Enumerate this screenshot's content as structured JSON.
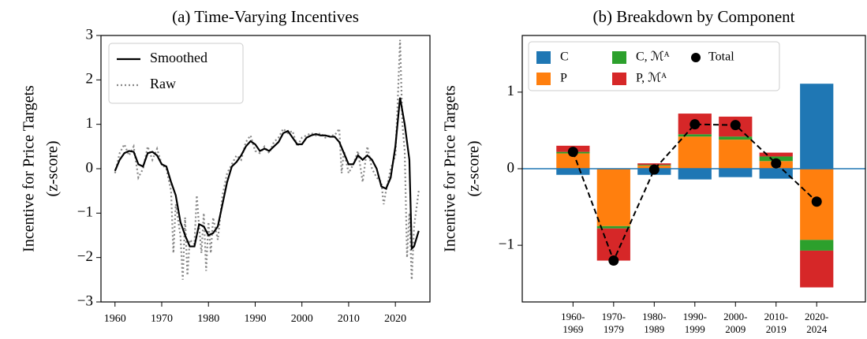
{
  "chart_data": [
    {
      "type": "line",
      "title": "(a) Time-Varying Incentives",
      "ylabel": [
        "Incentive for Price Targets",
        "(z-score)"
      ],
      "xlim": [
        1957,
        2027.4
      ],
      "ylim": [
        -3,
        3
      ],
      "xticks": [
        1960,
        1970,
        1980,
        1990,
        2000,
        2010,
        2020
      ],
      "yticks": [
        {
          "value": -3,
          "label": "−3"
        },
        {
          "value": -2,
          "label": "−2"
        },
        {
          "value": -1,
          "label": "−1"
        },
        0,
        1,
        2,
        3
      ],
      "legend": "upper left",
      "series": [
        {
          "name": "Smoothed",
          "color": "#000000",
          "style": "solid",
          "x": [
            1960,
            1961,
            1962,
            1963,
            1964,
            1965,
            1966,
            1967,
            1968,
            1969,
            1970,
            1971,
            1972,
            1973,
            1974,
            1975,
            1976,
            1977,
            1978,
            1979,
            1980,
            1981,
            1982,
            1983,
            1984,
            1985,
            1986,
            1987,
            1988,
            1989,
            1990,
            1991,
            1992,
            1993,
            1994,
            1995,
            1996,
            1997,
            1998,
            1999,
            2000,
            2001,
            2002,
            2003,
            2004,
            2005,
            2006,
            2007,
            2008,
            2009,
            2010,
            2011,
            2012,
            2013,
            2014,
            2015,
            2016,
            2017,
            2018,
            2019,
            2020,
            2021,
            2022,
            2023,
            2023.5,
            2024,
            2025
          ],
          "values": [
            -0.05,
            0.2,
            0.35,
            0.4,
            0.38,
            0.1,
            0.05,
            0.35,
            0.38,
            0.3,
            0.1,
            0.05,
            -0.3,
            -0.6,
            -1.2,
            -1.5,
            -1.75,
            -1.75,
            -1.25,
            -1.3,
            -1.5,
            -1.45,
            -1.3,
            -0.8,
            -0.3,
            0.05,
            0.15,
            0.3,
            0.5,
            0.62,
            0.55,
            0.4,
            0.45,
            0.4,
            0.5,
            0.6,
            0.8,
            0.85,
            0.7,
            0.55,
            0.55,
            0.7,
            0.75,
            0.78,
            0.75,
            0.75,
            0.72,
            0.72,
            0.6,
            0.35,
            0.1,
            0.1,
            0.3,
            0.2,
            0.3,
            0.2,
            0.0,
            -0.4,
            -0.45,
            -0.2,
            0.5,
            1.6,
            1.0,
            0.2,
            -1.8,
            -1.75,
            -1.4
          ]
        },
        {
          "name": "Raw",
          "color": "#888888",
          "style": "dotted",
          "x": [
            1960,
            1961,
            1962,
            1963,
            1964,
            1965,
            1966,
            1967,
            1968,
            1969,
            1970,
            1971,
            1972,
            1972.5,
            1973,
            1974,
            1974.5,
            1975,
            1975.5,
            1976,
            1977,
            1977.5,
            1978,
            1978.5,
            1979,
            1979.5,
            1980,
            1980.5,
            1981,
            1982,
            1983,
            1984,
            1985,
            1986,
            1987,
            1988,
            1989,
            1990,
            1991,
            1992,
            1993,
            1994,
            1995,
            1996,
            1997,
            1998,
            1999,
            2000,
            2001,
            2002,
            2003,
            2004,
            2005,
            2006,
            2007,
            2008,
            2008.5,
            2009,
            2010,
            2011,
            2012,
            2013,
            2014,
            2015,
            2016,
            2017,
            2017.5,
            2018,
            2019,
            2020,
            2020.5,
            2021,
            2021.5,
            2022,
            2022.5,
            2023,
            2023.5,
            2024,
            2025
          ],
          "values": [
            -0.1,
            0.35,
            0.55,
            0.3,
            0.5,
            -0.2,
            0.0,
            0.5,
            0.2,
            0.45,
            0.1,
            0.0,
            -0.5,
            -1.9,
            -0.8,
            -1.5,
            -2.5,
            -1.1,
            -2.4,
            -1.6,
            -1.7,
            -0.6,
            -1.3,
            -1.9,
            -1.0,
            -2.3,
            -1.2,
            -1.9,
            -1.1,
            -1.6,
            -0.6,
            -0.1,
            0.1,
            0.3,
            0.2,
            0.6,
            0.75,
            0.4,
            0.35,
            0.5,
            0.35,
            0.6,
            0.7,
            0.9,
            0.8,
            0.85,
            0.5,
            0.7,
            0.75,
            0.8,
            0.75,
            0.8,
            0.7,
            0.75,
            0.75,
            0.9,
            -0.1,
            0.4,
            -0.1,
            0.1,
            0.4,
            -0.3,
            0.5,
            0.0,
            -0.2,
            -0.3,
            -0.8,
            -0.5,
            0.0,
            0.3,
            1.5,
            2.9,
            1.0,
            0.4,
            -2.0,
            -1.0,
            -2.5,
            -1.3,
            -0.5
          ]
        }
      ]
    },
    {
      "type": "bar",
      "stacked": true,
      "title": "(b) Breakdown by Component",
      "ylabel": [
        "Incentive for Price Targets",
        "(z-score)"
      ],
      "ylim": [
        -1.74,
        1.74
      ],
      "yticks": [
        {
          "value": -1,
          "label": "−1"
        },
        0,
        1
      ],
      "axhline": {
        "y": 0,
        "color": "#1f77b4"
      },
      "legend": "upper left",
      "categories": [
        [
          "1960-",
          "1969"
        ],
        [
          "1970-",
          "1979"
        ],
        [
          "1980-",
          "1989"
        ],
        [
          "1990-",
          "1999"
        ],
        [
          "2000-",
          "2009"
        ],
        [
          "2010-",
          "2019"
        ],
        [
          "2020-",
          "2024"
        ]
      ],
      "series": [
        {
          "name": "C",
          "color": "#1f77b4",
          "values": [
            -0.08,
            0.0,
            -0.08,
            -0.14,
            -0.11,
            -0.13,
            1.11
          ]
        },
        {
          "name": "P",
          "color": "#ff7f0e",
          "values": [
            0.2,
            -0.75,
            0.04,
            0.42,
            0.38,
            0.1,
            -0.93
          ]
        },
        {
          "name": "C, ℳᴬ",
          "color": "#2ca02c",
          "values": [
            0.02,
            -0.03,
            0.01,
            0.03,
            0.04,
            0.06,
            -0.14
          ]
        },
        {
          "name": "P, ℳᴬ",
          "color": "#d62728",
          "values": [
            0.08,
            -0.42,
            0.02,
            0.27,
            0.26,
            0.05,
            -0.48
          ]
        },
        {
          "name": "Total",
          "type": "line",
          "color": "#000000",
          "values": [
            0.22,
            -1.2,
            -0.01,
            0.58,
            0.57,
            0.07,
            -0.43
          ]
        }
      ]
    }
  ]
}
